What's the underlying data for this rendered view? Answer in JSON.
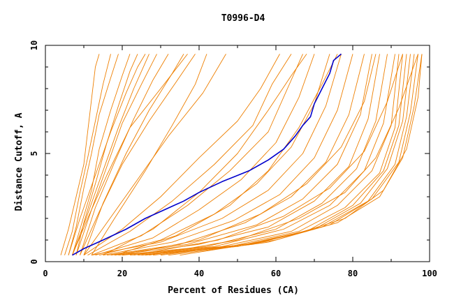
{
  "chart_data": {
    "type": "line",
    "title": "T0996-D4",
    "xlabel": "Percent of Residues (CA)",
    "ylabel": "Distance Cutoff, A",
    "xlim": [
      0,
      100
    ],
    "ylim": [
      0,
      10
    ],
    "x_ticks": [
      "0",
      "20",
      "40",
      "60",
      "80",
      "100"
    ],
    "y_ticks": [
      "0",
      "5",
      "10"
    ],
    "background_color": "#ffffff",
    "colors": {
      "others": "#ee7f00",
      "highlight": "#0000cc"
    },
    "highlight_series": {
      "points": [
        [
          7,
          0.3
        ],
        [
          10,
          0.6
        ],
        [
          15,
          1.0
        ],
        [
          21,
          1.5
        ],
        [
          26,
          2.0
        ],
        [
          31,
          2.4
        ],
        [
          36,
          2.8
        ],
        [
          40,
          3.2
        ],
        [
          46,
          3.7
        ],
        [
          53,
          4.2
        ],
        [
          58,
          4.7
        ],
        [
          62,
          5.2
        ],
        [
          65,
          5.8
        ],
        [
          67,
          6.3
        ],
        [
          69,
          6.7
        ],
        [
          70,
          7.3
        ],
        [
          72,
          8.0
        ],
        [
          74,
          8.7
        ],
        [
          75,
          9.3
        ],
        [
          77,
          9.6
        ]
      ]
    },
    "series": [
      {
        "points": [
          [
            4,
            0.3
          ],
          [
            6,
            1.5
          ],
          [
            8,
            3.0
          ],
          [
            10,
            4.5
          ],
          [
            11,
            6.0
          ],
          [
            12,
            7.5
          ],
          [
            13,
            9.0
          ],
          [
            14,
            9.6
          ]
        ]
      },
      {
        "points": [
          [
            5,
            0.3
          ],
          [
            7,
            1.4
          ],
          [
            9,
            3.2
          ],
          [
            11,
            4.8
          ],
          [
            13,
            6.5
          ],
          [
            15,
            8.2
          ],
          [
            17,
            9.6
          ]
        ]
      },
      {
        "points": [
          [
            6,
            0.3
          ],
          [
            8,
            1.6
          ],
          [
            10,
            3.4
          ],
          [
            12,
            5.0
          ],
          [
            14,
            6.8
          ],
          [
            17,
            8.5
          ],
          [
            19,
            9.6
          ]
        ]
      },
      {
        "points": [
          [
            7,
            0.3
          ],
          [
            9,
            1.5
          ],
          [
            12,
            3.3
          ],
          [
            14,
            5.2
          ],
          [
            17,
            7.0
          ],
          [
            20,
            8.6
          ],
          [
            22,
            9.6
          ]
        ]
      },
      {
        "points": [
          [
            8,
            0.3
          ],
          [
            10,
            1.8
          ],
          [
            13,
            3.6
          ],
          [
            16,
            5.5
          ],
          [
            19,
            7.2
          ],
          [
            22,
            8.8
          ],
          [
            24,
            9.6
          ]
        ]
      },
      {
        "points": [
          [
            6,
            0.3
          ],
          [
            9,
            2.0
          ],
          [
            13,
            4.0
          ],
          [
            17,
            6.0
          ],
          [
            21,
            7.8
          ],
          [
            24,
            9.0
          ],
          [
            26,
            9.6
          ]
        ]
      },
      {
        "points": [
          [
            7,
            0.3
          ],
          [
            11,
            2.2
          ],
          [
            15,
            4.2
          ],
          [
            19,
            6.2
          ],
          [
            23,
            8.0
          ],
          [
            27,
            9.6
          ]
        ]
      },
      {
        "points": [
          [
            8,
            0.3
          ],
          [
            12,
            2.4
          ],
          [
            16,
            4.4
          ],
          [
            20,
            6.4
          ],
          [
            25,
            8.2
          ],
          [
            29,
            9.6
          ]
        ]
      },
      {
        "points": [
          [
            9,
            0.3
          ],
          [
            13,
            2.5
          ],
          [
            18,
            4.6
          ],
          [
            23,
            6.6
          ],
          [
            28,
            8.4
          ],
          [
            32,
            9.6
          ]
        ]
      },
      {
        "points": [
          [
            10,
            0.3
          ],
          [
            15,
            2.7
          ],
          [
            21,
            5.0
          ],
          [
            27,
            7.0
          ],
          [
            33,
            8.7
          ],
          [
            36,
            9.6
          ]
        ]
      },
      {
        "points": [
          [
            7,
            0.3
          ],
          [
            11,
            2.0
          ],
          [
            16,
            4.0
          ],
          [
            22,
            6.2
          ],
          [
            30,
            8.0
          ],
          [
            37,
            9.6
          ]
        ]
      },
      {
        "points": [
          [
            9,
            0.3
          ],
          [
            14,
            2.3
          ],
          [
            20,
            4.5
          ],
          [
            27,
            6.5
          ],
          [
            34,
            8.3
          ],
          [
            39,
            9.6
          ]
        ]
      },
      {
        "points": [
          [
            12,
            0.3
          ],
          [
            18,
            2.0
          ],
          [
            26,
            4.2
          ],
          [
            33,
            6.3
          ],
          [
            39,
            8.2
          ],
          [
            42,
            9.6
          ]
        ]
      },
      {
        "points": [
          [
            10,
            0.3
          ],
          [
            16,
            1.8
          ],
          [
            24,
            3.8
          ],
          [
            32,
            5.8
          ],
          [
            41,
            7.8
          ],
          [
            47,
            9.6
          ]
        ]
      },
      {
        "points": [
          [
            10,
            0.3
          ],
          [
            20,
            1.5
          ],
          [
            30,
            3.0
          ],
          [
            40,
            4.8
          ],
          [
            50,
            6.5
          ],
          [
            56,
            8.0
          ],
          [
            61,
            9.6
          ]
        ]
      },
      {
        "points": [
          [
            11,
            0.3
          ],
          [
            22,
            1.4
          ],
          [
            33,
            2.8
          ],
          [
            44,
            4.5
          ],
          [
            54,
            6.3
          ],
          [
            59,
            8.2
          ],
          [
            64,
            9.6
          ]
        ]
      },
      {
        "points": [
          [
            12,
            0.3
          ],
          [
            25,
            1.2
          ],
          [
            37,
            2.6
          ],
          [
            48,
            4.2
          ],
          [
            58,
            6.0
          ],
          [
            63,
            8.0
          ],
          [
            67,
            9.6
          ]
        ]
      },
      {
        "points": [
          [
            13,
            0.3
          ],
          [
            28,
            1.1
          ],
          [
            40,
            2.4
          ],
          [
            51,
            3.8
          ],
          [
            60,
            5.5
          ],
          [
            66,
            7.6
          ],
          [
            70,
            9.6
          ]
        ]
      },
      {
        "points": [
          [
            14,
            0.3
          ],
          [
            30,
            1.0
          ],
          [
            44,
            2.2
          ],
          [
            55,
            3.6
          ],
          [
            64,
            5.3
          ],
          [
            70,
            7.3
          ],
          [
            74,
            9.6
          ]
        ]
      },
      {
        "points": [
          [
            12,
            0.3
          ],
          [
            30,
            0.9
          ],
          [
            46,
            2.0
          ],
          [
            58,
            3.3
          ],
          [
            67,
            5.0
          ],
          [
            73,
            7.2
          ],
          [
            77,
            9.6
          ]
        ]
      },
      {
        "points": [
          [
            15,
            0.3
          ],
          [
            33,
            0.9
          ],
          [
            49,
            1.9
          ],
          [
            61,
            3.1
          ],
          [
            70,
            4.8
          ],
          [
            76,
            7.0
          ],
          [
            80,
            9.6
          ]
        ]
      },
      {
        "points": [
          [
            16,
            0.3
          ],
          [
            35,
            0.8
          ],
          [
            52,
            1.8
          ],
          [
            64,
            3.0
          ],
          [
            73,
            4.6
          ],
          [
            79,
            6.8
          ],
          [
            83,
            9.6
          ]
        ]
      },
      {
        "points": [
          [
            17,
            0.3
          ],
          [
            37,
            0.8
          ],
          [
            55,
            1.7
          ],
          [
            67,
            2.9
          ],
          [
            76,
            4.5
          ],
          [
            82,
            6.8
          ],
          [
            85,
            9.6
          ]
        ]
      },
      {
        "points": [
          [
            18,
            0.3
          ],
          [
            40,
            0.8
          ],
          [
            58,
            1.6
          ],
          [
            70,
            2.8
          ],
          [
            79,
            4.4
          ],
          [
            84,
            6.6
          ],
          [
            87,
            9.6
          ]
        ]
      },
      {
        "points": [
          [
            19,
            0.3
          ],
          [
            42,
            0.7
          ],
          [
            60,
            1.5
          ],
          [
            72,
            2.7
          ],
          [
            81,
            4.3
          ],
          [
            86,
            6.5
          ],
          [
            89,
            9.6
          ]
        ]
      },
      {
        "points": [
          [
            20,
            0.3
          ],
          [
            44,
            0.7
          ],
          [
            62,
            1.5
          ],
          [
            74,
            2.6
          ],
          [
            83,
            4.2
          ],
          [
            88,
            6.4
          ],
          [
            91,
            9.6
          ]
        ]
      },
      {
        "points": [
          [
            22,
            0.3
          ],
          [
            46,
            0.7
          ],
          [
            64,
            1.4
          ],
          [
            76,
            2.6
          ],
          [
            85,
            4.2
          ],
          [
            90,
            6.3
          ],
          [
            92,
            9.6
          ]
        ]
      },
      {
        "points": [
          [
            24,
            0.3
          ],
          [
            48,
            0.7
          ],
          [
            66,
            1.4
          ],
          [
            78,
            2.5
          ],
          [
            87,
            4.1
          ],
          [
            91,
            6.2
          ],
          [
            93,
            9.6
          ]
        ]
      },
      {
        "points": [
          [
            25,
            0.3
          ],
          [
            50,
            0.7
          ],
          [
            68,
            1.4
          ],
          [
            80,
            2.6
          ],
          [
            88,
            4.2
          ],
          [
            92,
            6.3
          ],
          [
            94,
            9.6
          ]
        ]
      },
      {
        "points": [
          [
            26,
            0.3
          ],
          [
            52,
            0.8
          ],
          [
            70,
            1.5
          ],
          [
            82,
            2.7
          ],
          [
            89,
            4.3
          ],
          [
            93,
            6.5
          ],
          [
            95,
            9.6
          ]
        ]
      },
      {
        "points": [
          [
            28,
            0.3
          ],
          [
            54,
            0.8
          ],
          [
            72,
            1.6
          ],
          [
            84,
            2.8
          ],
          [
            91,
            4.5
          ],
          [
            94,
            6.7
          ],
          [
            96,
            9.6
          ]
        ]
      },
      {
        "points": [
          [
            30,
            0.3
          ],
          [
            56,
            0.9
          ],
          [
            74,
            1.7
          ],
          [
            85,
            2.9
          ],
          [
            92,
            4.6
          ],
          [
            95,
            6.9
          ],
          [
            97,
            9.6
          ]
        ]
      },
      {
        "points": [
          [
            32,
            0.3
          ],
          [
            58,
            0.9
          ],
          [
            76,
            1.8
          ],
          [
            87,
            3.0
          ],
          [
            93,
            4.8
          ],
          [
            96,
            7.2
          ],
          [
            98,
            9.6
          ]
        ]
      },
      {
        "points": [
          [
            20,
            0.3
          ],
          [
            40,
            1.0
          ],
          [
            56,
            2.2
          ],
          [
            68,
            3.6
          ],
          [
            77,
            5.3
          ],
          [
            83,
            7.4
          ],
          [
            86,
            9.6
          ]
        ]
      },
      {
        "points": [
          [
            23,
            0.3
          ],
          [
            45,
            1.0
          ],
          [
            62,
            2.1
          ],
          [
            74,
            3.4
          ],
          [
            83,
            5.1
          ],
          [
            89,
            7.4
          ],
          [
            93,
            9.6
          ]
        ]
      },
      {
        "points": [
          [
            27,
            0.3
          ],
          [
            50,
            1.0
          ],
          [
            66,
            2.0
          ],
          [
            78,
            3.2
          ],
          [
            86,
            4.8
          ],
          [
            92,
            7.1
          ],
          [
            97,
            9.6
          ]
        ]
      },
      {
        "points": [
          [
            18,
            0.3
          ],
          [
            34,
            1.2
          ],
          [
            48,
            2.6
          ],
          [
            58,
            4.2
          ],
          [
            66,
            6.2
          ],
          [
            72,
            8.2
          ],
          [
            76,
            9.6
          ]
        ]
      },
      {
        "points": [
          [
            15,
            0.3
          ],
          [
            28,
            1.5
          ],
          [
            40,
            3.2
          ],
          [
            50,
            5.0
          ],
          [
            58,
            7.0
          ],
          [
            64,
            8.6
          ],
          [
            68,
            9.6
          ]
        ]
      },
      {
        "points": [
          [
            35,
            0.3
          ],
          [
            60,
            1.0
          ],
          [
            78,
            2.0
          ],
          [
            88,
            3.3
          ],
          [
            94,
            5.2
          ],
          [
            97,
            7.6
          ],
          [
            98,
            9.6
          ]
        ]
      }
    ]
  }
}
